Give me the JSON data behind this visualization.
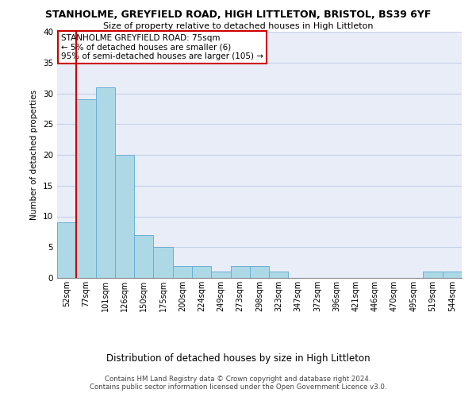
{
  "title_line1": "STANHOLME, GREYFIELD ROAD, HIGH LITTLETON, BRISTOL, BS39 6YF",
  "title_line2": "Size of property relative to detached houses in High Littleton",
  "xlabel": "Distribution of detached houses by size in High Littleton",
  "ylabel": "Number of detached properties",
  "bin_labels": [
    "52sqm",
    "77sqm",
    "101sqm",
    "126sqm",
    "150sqm",
    "175sqm",
    "200sqm",
    "224sqm",
    "249sqm",
    "273sqm",
    "298sqm",
    "323sqm",
    "347sqm",
    "372sqm",
    "396sqm",
    "421sqm",
    "446sqm",
    "470sqm",
    "495sqm",
    "519sqm",
    "544sqm"
  ],
  "bar_heights": [
    9,
    29,
    31,
    20,
    7,
    5,
    2,
    2,
    1,
    2,
    2,
    1,
    0,
    0,
    0,
    0,
    0,
    0,
    0,
    1,
    1
  ],
  "bar_color": "#add8e6",
  "bar_edge_color": "#6baed6",
  "vline_x_idx": 1,
  "vline_color": "#cc0000",
  "annotation_title": "STANHOLME GREYFIELD ROAD: 75sqm",
  "annotation_line1": "← 5% of detached houses are smaller (6)",
  "annotation_line2": "95% of semi-detached houses are larger (105) →",
  "annotation_box_color": "#ffffff",
  "annotation_box_edge": "#cc0000",
  "ylim": [
    0,
    40
  ],
  "yticks": [
    0,
    5,
    10,
    15,
    20,
    25,
    30,
    35,
    40
  ],
  "footer_line1": "Contains HM Land Registry data © Crown copyright and database right 2024.",
  "footer_line2": "Contains public sector information licensed under the Open Government Licence v3.0.",
  "bg_color": "#e8edf8",
  "grid_color": "#c8d0e8"
}
